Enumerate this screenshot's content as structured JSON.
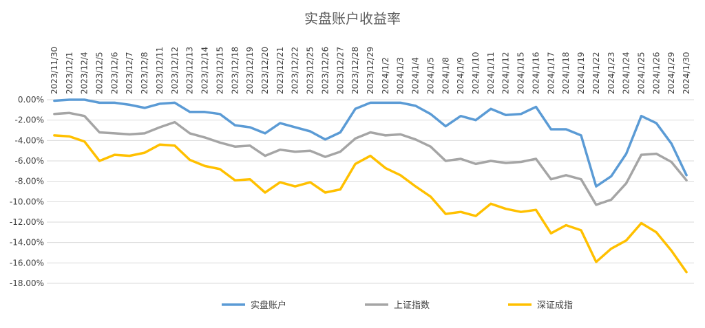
{
  "chart_data": {
    "type": "line",
    "title": "实盘账户收益率",
    "x": [
      "2023/11/30",
      "2023/12/1",
      "2023/12/4",
      "2023/12/5",
      "2023/12/6",
      "2023/12/7",
      "2023/12/8",
      "2023/12/11",
      "2023/12/12",
      "2023/12/13",
      "2023/12/14",
      "2023/12/15",
      "2023/12/18",
      "2023/12/19",
      "2023/12/20",
      "2023/12/21",
      "2023/12/22",
      "2023/12/25",
      "2023/12/26",
      "2023/12/27",
      "2023/12/28",
      "2023/12/29",
      "2024/1/2",
      "2024/1/3",
      "2024/1/4",
      "2024/1/5",
      "2024/1/8",
      "2024/1/9",
      "2024/1/10",
      "2024/1/11",
      "2024/1/12",
      "2024/1/15",
      "2024/1/16",
      "2024/1/17",
      "2024/1/18",
      "2024/1/19",
      "2024/1/22",
      "2024/1/23",
      "2024/1/24",
      "2024/1/25",
      "2024/1/26",
      "2024/1/29",
      "2024/1/30"
    ],
    "series": [
      {
        "name": "实盘账户",
        "color": "#5b9bd5",
        "values": [
          -0.1,
          0.0,
          0.0,
          -0.3,
          -0.3,
          -0.5,
          -0.8,
          -0.4,
          -0.3,
          -1.2,
          -1.2,
          -1.4,
          -2.5,
          -2.7,
          -3.3,
          -2.3,
          -2.7,
          -3.1,
          -3.9,
          -3.2,
          -0.9,
          -0.3,
          -0.3,
          -0.3,
          -0.6,
          -1.4,
          -2.6,
          -1.6,
          -2.0,
          -0.9,
          -1.5,
          -1.4,
          -0.7,
          -2.9,
          -2.9,
          -3.5,
          -8.5,
          -7.5,
          -5.3,
          -1.6,
          -2.3,
          -4.3,
          -7.4
        ]
      },
      {
        "name": "上证指数",
        "color": "#a5a5a5",
        "values": [
          -1.4,
          -1.3,
          -1.6,
          -3.2,
          -3.3,
          -3.4,
          -3.3,
          -2.7,
          -2.2,
          -3.3,
          -3.7,
          -4.2,
          -4.6,
          -4.5,
          -5.5,
          -4.9,
          -5.1,
          -5.0,
          -5.6,
          -5.1,
          -3.8,
          -3.2,
          -3.5,
          -3.4,
          -3.9,
          -4.6,
          -6.0,
          -5.8,
          -6.3,
          -6.0,
          -6.2,
          -6.1,
          -5.8,
          -7.8,
          -7.4,
          -7.8,
          -10.3,
          -9.8,
          -8.2,
          -5.4,
          -5.3,
          -6.1,
          -7.9
        ]
      },
      {
        "name": "深证成指",
        "color": "#ffc000",
        "values": [
          -3.5,
          -3.6,
          -4.1,
          -6.0,
          -5.4,
          -5.5,
          -5.2,
          -4.4,
          -4.5,
          -5.9,
          -6.5,
          -6.8,
          -7.9,
          -7.8,
          -9.1,
          -8.1,
          -8.5,
          -8.1,
          -9.1,
          -8.8,
          -6.3,
          -5.5,
          -6.7,
          -7.4,
          -8.5,
          -9.5,
          -11.2,
          -11.0,
          -11.4,
          -10.2,
          -10.7,
          -11.0,
          -10.8,
          -13.1,
          -12.3,
          -12.8,
          -15.9,
          -14.6,
          -13.8,
          -12.1,
          -13.0,
          -14.8,
          -16.9
        ]
      }
    ],
    "yticks": [
      "0.00%",
      "-2.00%",
      "-4.00%",
      "-6.00%",
      "-8.00%",
      "-10.00%",
      "-12.00%",
      "-14.00%",
      "-16.00%",
      "-18.00%"
    ],
    "ylim": [
      -18,
      0
    ],
    "grid": "horizontal",
    "legend": "bottom"
  }
}
